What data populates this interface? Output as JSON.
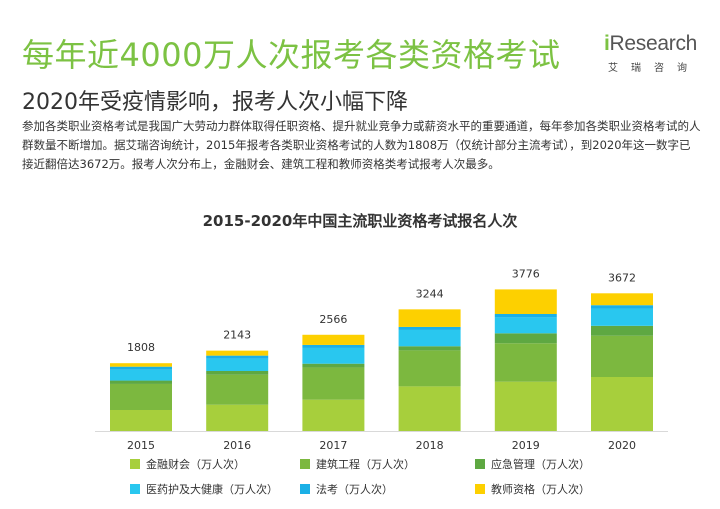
{
  "page": {
    "headline": "每年近4000万人次报考各类资格考试",
    "subheadline": "2020年受疫情影响，报考人次小幅下降",
    "intro": "参加各类职业资格考试是我国广大劳动力群体取得任职资格、提升就业竞争力或薪资水平的重要通道，每年参加各类职业资格考试的人群数量不断增加。据艾瑞咨询统计，2015年报考各类职业资格考试的人数为1808万（仅统计部分主流考试），到2020年这一数字已接近翻倍达3672万。报考人次分布上，金融财会、建筑工程和教师资格类考试报考人次最多。"
  },
  "logo": {
    "brand_i": "i",
    "brand_rest": "Research",
    "sub": "艾瑞咨询"
  },
  "chart_data": {
    "type": "bar",
    "stacked": true,
    "title": "2015-2020年中国主流职业资格考试报名人次",
    "categories": [
      "2015",
      "2016",
      "2017",
      "2018",
      "2019",
      "2020"
    ],
    "totals": [
      1808,
      2143,
      2566,
      3244,
      3776,
      3672
    ],
    "ylim": [
      0,
      4000
    ],
    "grid": false,
    "legend_position": "bottom",
    "series": [
      {
        "name": "金融财会（万人次）",
        "color": "#a7cf3c",
        "values": [
          560,
          700,
          835,
          1190,
          1315,
          1440
        ]
      },
      {
        "name": "建筑工程（万人次）",
        "color": "#7cb83f",
        "values": [
          695,
          800,
          860,
          960,
          1025,
          1100
        ]
      },
      {
        "name": "应急管理（万人次）",
        "color": "#5ea842",
        "values": [
          90,
          100,
          100,
          110,
          265,
          265
        ]
      },
      {
        "name": "医药护及大健康（万人次）",
        "color": "#29c7ef",
        "values": [
          290,
          330,
          420,
          435,
          425,
          460
        ]
      },
      {
        "name": "法考（万人次）",
        "color": "#1bb0e6",
        "values": [
          80,
          80,
          80,
          80,
          90,
          90
        ]
      },
      {
        "name": "教师资格（万人次）",
        "color": "#fdd000",
        "values": [
          93,
          133,
          271,
          469,
          656,
          317
        ]
      }
    ]
  }
}
